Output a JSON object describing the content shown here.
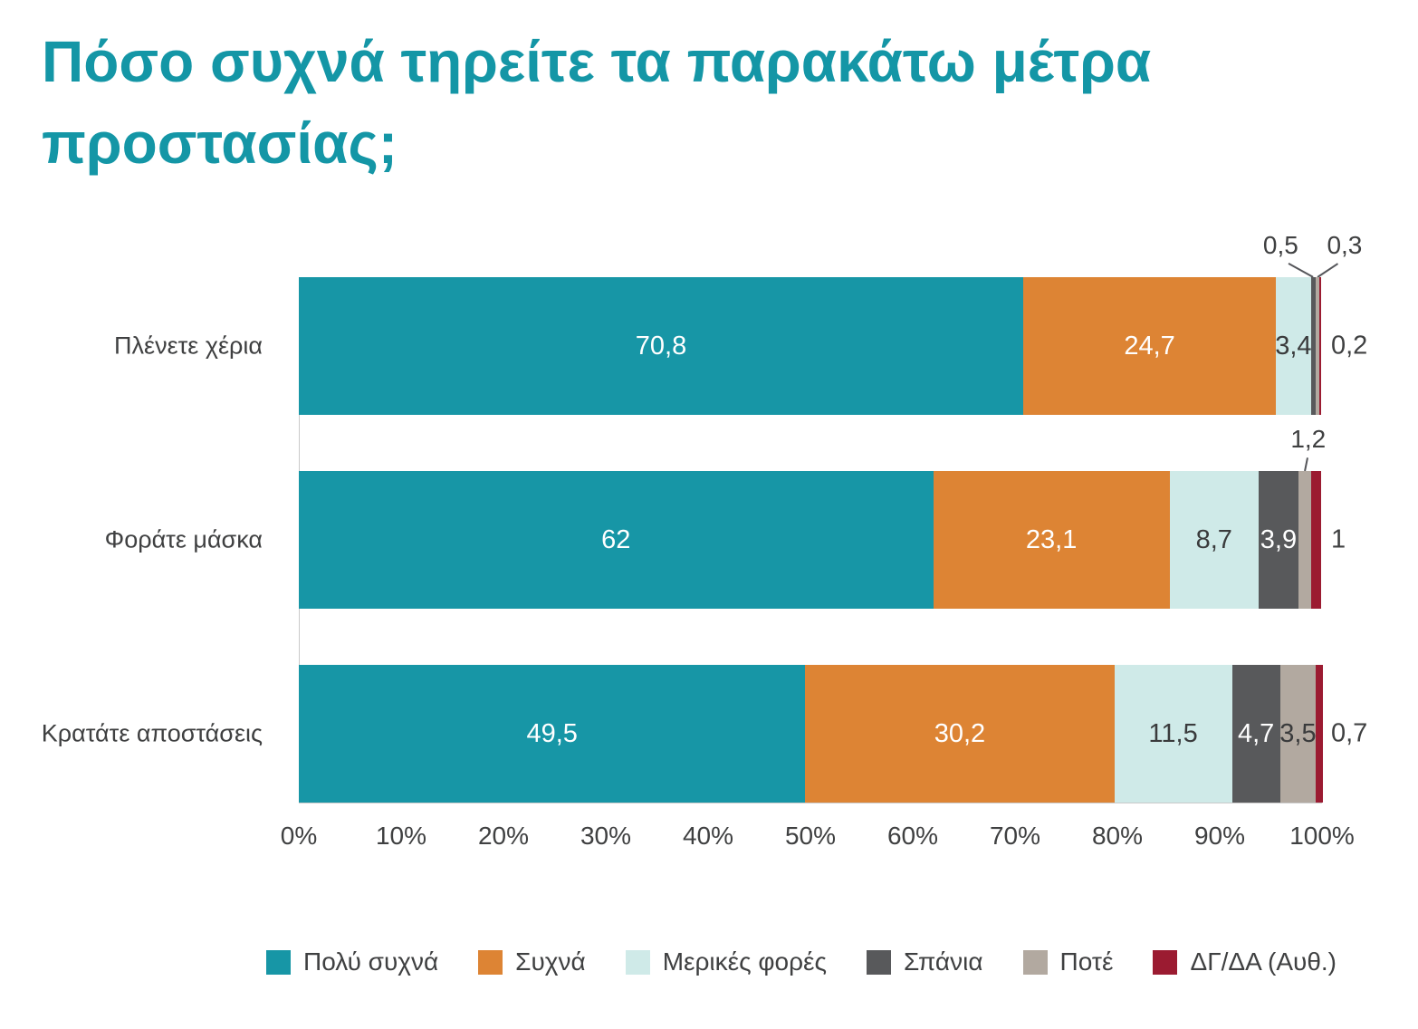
{
  "page": {
    "background": "#ffffff",
    "title_color": "#1496a6",
    "text_color": "#3f4041"
  },
  "chart_data": {
    "type": "bar",
    "orientation": "horizontal",
    "stacked": true,
    "title": "Πόσο συχνά τηρείτε τα παρακάτω μέτρα\nπροστασίας;",
    "categories": [
      "Πλένετε χέρια",
      "Φοράτε μάσκα",
      "Κρατάτε αποστάσεις"
    ],
    "series": [
      {
        "name": "Πολύ συχνά",
        "color": "#1796a6",
        "values": [
          70.8,
          62,
          49.5
        ],
        "labels": [
          "70,8",
          "62",
          "49,5"
        ],
        "label_style": "light"
      },
      {
        "name": "Συχνά",
        "color": "#dd8434",
        "values": [
          24.7,
          23.1,
          30.2
        ],
        "labels": [
          "24,7",
          "23,1",
          "30,2"
        ],
        "label_style": "light"
      },
      {
        "name": "Μερικές φορές",
        "color": "#cfeae8",
        "values": [
          3.4,
          8.7,
          11.5
        ],
        "labels": [
          "3,4",
          "8,7",
          "11,5"
        ],
        "label_style": "dark"
      },
      {
        "name": "Σπάνια",
        "color": "#58595b",
        "values": [
          0.5,
          3.9,
          4.7
        ],
        "labels": [
          "0,5",
          "3,9",
          "4,7"
        ],
        "label_style": "light"
      },
      {
        "name": "Ποτέ",
        "color": "#b2a9a0",
        "values": [
          0.3,
          1.2,
          3.5
        ],
        "labels": [
          "0,3",
          "1,2",
          "3,5"
        ],
        "label_style": "dark"
      },
      {
        "name": "ΔΓ/ΔΑ (Αυθ.)",
        "color": "#9b1b31",
        "values": [
          0.2,
          1,
          0.7
        ],
        "labels": [
          "0,2",
          "1",
          "0,7"
        ],
        "label_style": "light"
      }
    ],
    "label_placement": [
      [
        "inside",
        "inside",
        "inside",
        "callout",
        "callout",
        "right"
      ],
      [
        "inside",
        "inside",
        "inside",
        "inside",
        "callout",
        "right"
      ],
      [
        "inside",
        "inside",
        "inside",
        "inside",
        "inside",
        "right"
      ]
    ],
    "x_ticks": [
      "0%",
      "10%",
      "20%",
      "30%",
      "40%",
      "50%",
      "60%",
      "70%",
      "80%",
      "90%",
      "100%"
    ],
    "xlim": [
      0,
      100
    ],
    "grid": "off",
    "legend_position": "bottom"
  }
}
